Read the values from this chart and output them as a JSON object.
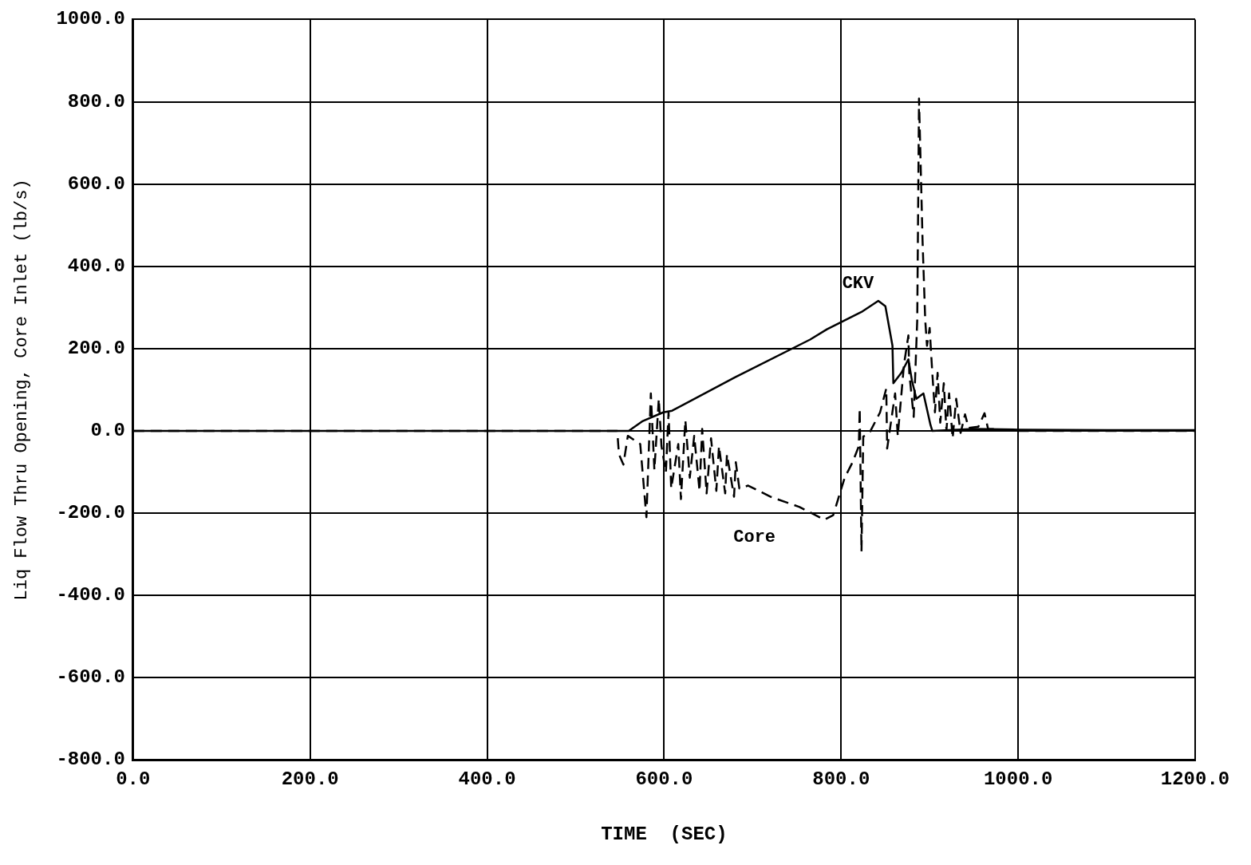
{
  "chart_data": {
    "type": "line",
    "xlabel": "TIME  (SEC)",
    "ylabel": "Liq Flow Thru Opening, Core Inlet (lb/s)",
    "xlim": [
      0,
      1200
    ],
    "ylim": [
      -800,
      1000
    ],
    "xticks": [
      {
        "value": 0,
        "label": "0.0"
      },
      {
        "value": 200,
        "label": "200.0"
      },
      {
        "value": 400,
        "label": "400.0"
      },
      {
        "value": 600,
        "label": "600.0"
      },
      {
        "value": 800,
        "label": "800.0"
      },
      {
        "value": 1000,
        "label": "1000.0"
      },
      {
        "value": 1200,
        "label": "1200.0"
      }
    ],
    "yticks": [
      {
        "value": -800,
        "label": "-800.0"
      },
      {
        "value": -600,
        "label": "-600.0"
      },
      {
        "value": -400,
        "label": "-400.0"
      },
      {
        "value": -200,
        "label": "-200.0"
      },
      {
        "value": 0,
        "label": "0.0"
      },
      {
        "value": 200,
        "label": "200.0"
      },
      {
        "value": 400,
        "label": "400.0"
      },
      {
        "value": 600,
        "label": "600.0"
      },
      {
        "value": 800,
        "label": "800.0"
      },
      {
        "value": 1000,
        "label": "1000.0"
      }
    ],
    "grid": true,
    "legend": false,
    "marker": "none",
    "series": [
      {
        "name": "CKV",
        "color": "#000000",
        "line_style": "solid",
        "x": [
          0,
          500,
          560,
          576,
          599,
          609,
          680,
          765,
          784,
          823,
          842,
          850,
          858,
          859,
          868,
          876,
          880,
          885,
          893,
          901,
          903,
          950,
          1000,
          1100,
          1200
        ],
        "values": [
          0,
          0,
          0,
          24,
          45,
          49,
          130,
          222,
          247,
          289,
          316,
          303,
          207,
          116,
          141,
          174,
          122,
          78,
          91,
          14,
          0,
          5,
          3,
          2,
          2
        ]
      },
      {
        "name": "Core",
        "color": "#000000",
        "line_style": "dashed",
        "x": [
          0,
          515,
          547,
          549,
          554,
          559,
          573,
          580,
          585,
          589,
          594,
          597,
          602,
          605,
          608,
          616,
          619,
          624,
          629,
          634,
          640,
          643,
          648,
          653,
          659,
          662,
          669,
          671,
          679,
          681,
          685,
          695,
          720,
          753,
          781,
          791,
          804,
          813,
          820,
          821,
          823,
          825,
          832,
          844,
          851,
          852,
          861,
          864,
          871,
          876,
          877,
          882,
          886,
          888,
          892,
          895,
          897,
          900,
          903,
          906,
          909,
          912,
          916,
          919,
          922,
          926,
          930,
          935,
          940,
          944,
          955,
          962,
          966,
          1000,
          1200
        ],
        "values": [
          0,
          0,
          0,
          -57,
          -82,
          -12,
          -32,
          -210,
          91,
          -95,
          78,
          -37,
          -101,
          45,
          -140,
          -32,
          -166,
          26,
          -114,
          -12,
          -146,
          5,
          -152,
          -18,
          -146,
          -37,
          -152,
          -57,
          -160,
          -76,
          -140,
          -133,
          -160,
          -185,
          -216,
          -205,
          -114,
          -76,
          -37,
          55,
          -293,
          -14,
          -5,
          45,
          103,
          -43,
          91,
          -12,
          161,
          232,
          141,
          34,
          270,
          808,
          462,
          270,
          207,
          250,
          141,
          45,
          141,
          20,
          116,
          1,
          91,
          -18,
          78,
          -5,
          40,
          7,
          10,
          43,
          5,
          0,
          0
        ]
      }
    ]
  }
}
